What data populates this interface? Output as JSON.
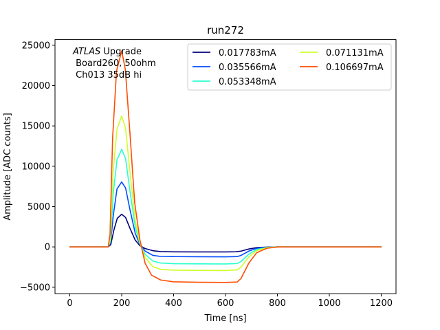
{
  "chart_data": {
    "type": "line",
    "title": "run272",
    "xlabel": "Time [ns]",
    "ylabel": "Amplitude [ADC counts]",
    "xlim": [
      -57,
      1257
    ],
    "ylim": [
      -5800,
      25700
    ],
    "xticks": [
      0,
      200,
      400,
      600,
      800,
      1000,
      1200
    ],
    "yticks": [
      -5000,
      0,
      5000,
      10000,
      15000,
      20000,
      25000
    ],
    "legend_position": "top-right",
    "legend_columns": 2,
    "grid": false,
    "annotation": {
      "lines": [
        "ATLAS Upgrade",
        " Board260, 50ohm",
        " Ch013 35dB hi"
      ],
      "italic_word": "ATLAS",
      "rest_first_line": " Upgrade"
    },
    "series": [
      {
        "name": "0.017783mA",
        "color": "#00007f",
        "points": [
          [
            0,
            0
          ],
          [
            100,
            0
          ],
          [
            148,
            0
          ],
          [
            158,
            300
          ],
          [
            170,
            2100
          ],
          [
            183,
            3550
          ],
          [
            200,
            4050
          ],
          [
            215,
            3650
          ],
          [
            232,
            2300
          ],
          [
            252,
            850
          ],
          [
            270,
            150
          ],
          [
            290,
            -200
          ],
          [
            320,
            -470
          ],
          [
            350,
            -580
          ],
          [
            400,
            -610
          ],
          [
            500,
            -620
          ],
          [
            600,
            -620
          ],
          [
            640,
            -600
          ],
          [
            660,
            -520
          ],
          [
            690,
            -260
          ],
          [
            720,
            -90
          ],
          [
            760,
            -20
          ],
          [
            800,
            0
          ],
          [
            1200,
            0
          ]
        ]
      },
      {
        "name": "0.035566mA",
        "color": "#004cff",
        "points": [
          [
            0,
            0
          ],
          [
            100,
            0
          ],
          [
            148,
            0
          ],
          [
            157,
            500
          ],
          [
            168,
            4000
          ],
          [
            182,
            7200
          ],
          [
            200,
            8050
          ],
          [
            215,
            7300
          ],
          [
            232,
            4600
          ],
          [
            252,
            1700
          ],
          [
            270,
            300
          ],
          [
            290,
            -500
          ],
          [
            320,
            -1050
          ],
          [
            350,
            -1180
          ],
          [
            400,
            -1200
          ],
          [
            500,
            -1220
          ],
          [
            600,
            -1230
          ],
          [
            645,
            -1200
          ],
          [
            660,
            -1050
          ],
          [
            690,
            -520
          ],
          [
            720,
            -180
          ],
          [
            760,
            -40
          ],
          [
            800,
            0
          ],
          [
            1200,
            0
          ]
        ]
      },
      {
        "name": "0.053348mA",
        "color": "#29ffce",
        "points": [
          [
            0,
            0
          ],
          [
            100,
            0
          ],
          [
            148,
            0
          ],
          [
            157,
            700
          ],
          [
            167,
            6500
          ],
          [
            182,
            10800
          ],
          [
            200,
            12100
          ],
          [
            215,
            10950
          ],
          [
            232,
            6900
          ],
          [
            252,
            2500
          ],
          [
            270,
            400
          ],
          [
            290,
            -900
          ],
          [
            320,
            -1750
          ],
          [
            350,
            -2000
          ],
          [
            400,
            -2080
          ],
          [
            500,
            -2100
          ],
          [
            600,
            -2110
          ],
          [
            645,
            -2060
          ],
          [
            660,
            -1800
          ],
          [
            690,
            -900
          ],
          [
            720,
            -320
          ],
          [
            760,
            -70
          ],
          [
            800,
            0
          ],
          [
            1200,
            0
          ]
        ]
      },
      {
        "name": "0.071131mA",
        "color": "#ceff29",
        "points": [
          [
            0,
            0
          ],
          [
            100,
            0
          ],
          [
            148,
            0
          ],
          [
            156,
            900
          ],
          [
            166,
            9000
          ],
          [
            182,
            14600
          ],
          [
            200,
            16250
          ],
          [
            215,
            14700
          ],
          [
            232,
            9300
          ],
          [
            252,
            3300
          ],
          [
            270,
            500
          ],
          [
            290,
            -1300
          ],
          [
            320,
            -2450
          ],
          [
            350,
            -2780
          ],
          [
            400,
            -2880
          ],
          [
            500,
            -2910
          ],
          [
            600,
            -2920
          ],
          [
            645,
            -2850
          ],
          [
            660,
            -2500
          ],
          [
            690,
            -1250
          ],
          [
            720,
            -450
          ],
          [
            760,
            -100
          ],
          [
            800,
            0
          ],
          [
            1200,
            0
          ]
        ]
      },
      {
        "name": "0.106697mA",
        "color": "#ff4c00",
        "points": [
          [
            0,
            0
          ],
          [
            100,
            0
          ],
          [
            148,
            0
          ],
          [
            155,
            1500
          ],
          [
            165,
            13500
          ],
          [
            180,
            21800
          ],
          [
            200,
            24300
          ],
          [
            214,
            22000
          ],
          [
            232,
            14000
          ],
          [
            250,
            5500
          ],
          [
            270,
            900
          ],
          [
            290,
            -2000
          ],
          [
            315,
            -3500
          ],
          [
            350,
            -4100
          ],
          [
            400,
            -4330
          ],
          [
            500,
            -4380
          ],
          [
            600,
            -4400
          ],
          [
            645,
            -4350
          ],
          [
            660,
            -3900
          ],
          [
            690,
            -2000
          ],
          [
            720,
            -720
          ],
          [
            760,
            -160
          ],
          [
            800,
            0
          ],
          [
            1200,
            0
          ]
        ]
      }
    ]
  }
}
